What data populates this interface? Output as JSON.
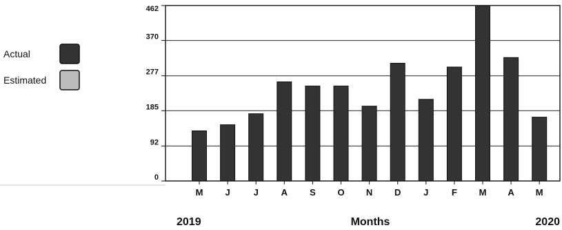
{
  "chart_data": {
    "type": "bar",
    "categories": [
      "M",
      "J",
      "J",
      "A",
      "S",
      "O",
      "N",
      "D",
      "J",
      "F",
      "M",
      "A",
      "M"
    ],
    "series": [
      {
        "name": "Actual",
        "values": [
          132,
          148,
          177,
          261,
          250,
          250,
          197,
          310,
          215,
          300,
          472,
          325,
          168
        ]
      },
      {
        "name": "Estimated",
        "values": [
          null,
          null,
          null,
          null,
          null,
          null,
          null,
          null,
          null,
          null,
          null,
          null,
          null
        ]
      }
    ],
    "xlabel": "Months",
    "ylabel": "",
    "yticks": [
      0,
      92,
      185,
      277,
      370,
      462
    ],
    "ylim": [
      0,
      462
    ],
    "grid": true,
    "legend": {
      "placement": "left",
      "entries": [
        "Actual",
        "Estimated"
      ]
    },
    "year_start": "2019",
    "year_end": "2020",
    "colors": {
      "actual": "#333333",
      "estimated": "#bbbbbb"
    }
  }
}
